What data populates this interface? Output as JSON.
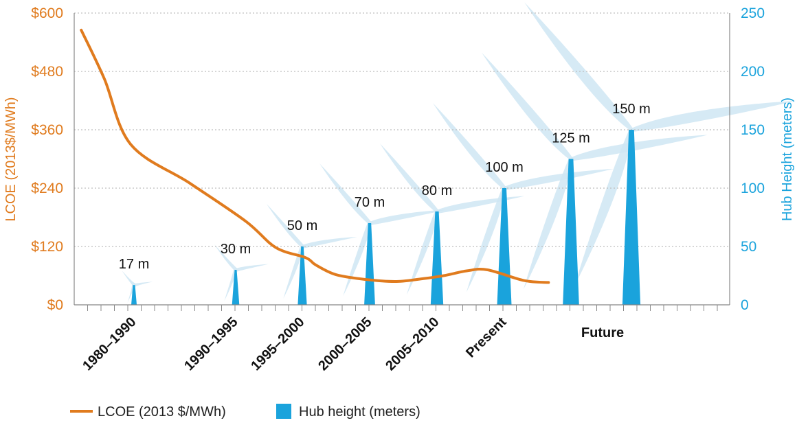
{
  "chart_data": {
    "type": "line+bar",
    "left_axis": {
      "label": "LCOE (2013$/MWh)",
      "ticks": [
        "$0",
        "$120",
        "$240",
        "$360",
        "$480",
        "$600"
      ],
      "tick_values": [
        0,
        120,
        240,
        360,
        480,
        600
      ],
      "range": [
        0,
        600
      ]
    },
    "right_axis": {
      "label": "Hub Height (meters)",
      "ticks": [
        "0",
        "50",
        "100",
        "150",
        "200",
        "250"
      ],
      "tick_values": [
        0,
        50,
        100,
        150,
        200,
        250
      ],
      "range": [
        0,
        250
      ]
    },
    "categories": [
      "1980–1990",
      "1990–1995",
      "1995–2000",
      "2000–2005",
      "2005–2010",
      "Present",
      "Future"
    ],
    "hub_heights": [
      {
        "value": 17,
        "label": "17 m"
      },
      {
        "value": 30,
        "label": "30 m"
      },
      {
        "value": 50,
        "label": "50 m"
      },
      {
        "value": 70,
        "label": "70 m"
      },
      {
        "value": 80,
        "label": "80 m"
      },
      {
        "value": 100,
        "label": "100 m"
      },
      {
        "value": 125,
        "label": "125 m"
      },
      {
        "value": 150,
        "label": "150 m"
      }
    ],
    "lcoe_series": {
      "name": "LCOE (2013 $/MWh)",
      "x_index": [
        -0.8,
        -0.45,
        -0.05,
        0.55,
        1.15,
        1.6,
        2.05,
        2.2,
        2.5,
        2.95,
        3.4,
        3.8,
        4.1,
        4.45,
        4.75,
        5.2,
        5.45
      ],
      "y": [
        565,
        465,
        330,
        250,
        172,
        118,
        97,
        82,
        62,
        52,
        48,
        54,
        60,
        70,
        72,
        50,
        46
      ]
    },
    "legend": [
      {
        "label": "LCOE (2013 $/MWh)",
        "marker": "line"
      },
      {
        "label": "Hub height (meters)",
        "marker": "square"
      }
    ],
    "legend_position": "bottom-left",
    "grid": true,
    "colors": {
      "lcoe": "#e07b1e",
      "hub": "#1aa3dc",
      "turbine": "#cfe6f3",
      "grid": "#bdbdbd",
      "axis": "#888888",
      "left_axis_text": "#e07b1e",
      "right_axis_text": "#1aa3dc"
    }
  }
}
